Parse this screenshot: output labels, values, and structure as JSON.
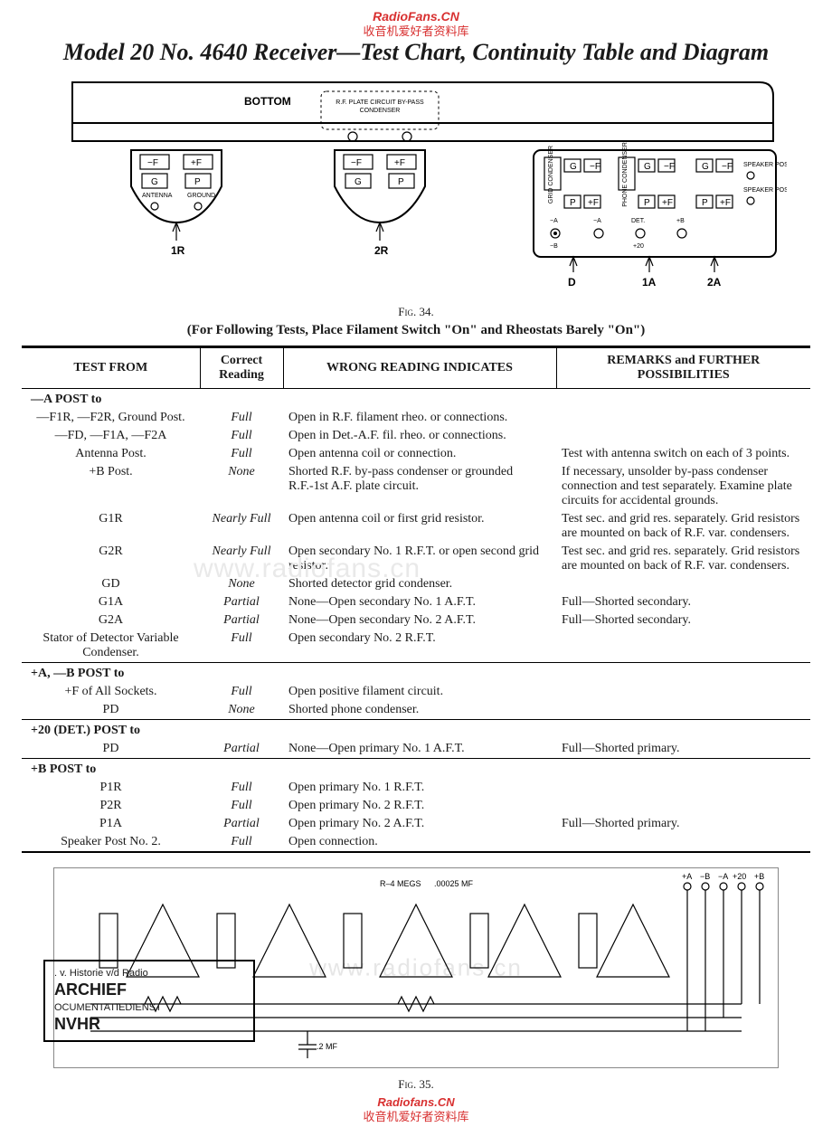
{
  "watermarks": {
    "top1": "RadioFans.CN",
    "top2": "收音机爱好者资料库",
    "center": "www.radiofans.cn",
    "bottom1": "Radiofans.CN",
    "bottom2": "收音机爱好者资料库"
  },
  "title": "Model 20 No. 4640 Receiver—Test Chart, Continuity Table and Diagram",
  "fig34": "Fig. 34.",
  "fig35": "Fig. 35.",
  "instruction": "(For Following Tests, Place Filament Switch \"On\" and Rheostats Barely \"On\")",
  "chassis": {
    "bottom_label": "BOTTOM",
    "bypass_label_l1": "R.F. PLATE CIRCUIT BY-PASS",
    "bypass_label_l2": "CONDENSER",
    "socket_labels": {
      "nF": "−F",
      "pF": "+F",
      "G": "G",
      "P": "P"
    },
    "posts": {
      "antenna": "ANTENNA",
      "ground": "GROUND"
    },
    "r1": "1R",
    "r2": "2R",
    "d": "D",
    "a1": "1A",
    "a2": "2A",
    "minusA": "−A",
    "minusB": "−B",
    "det": "DET.",
    "plus20": "+20",
    "plusB": "+B",
    "speaker1": "SPEAKER POST No. 1",
    "speaker2": "SPEAKER POST No. 2",
    "gridcond": "GRID CONDENSER",
    "phonecond": "PHONE CONDENSER"
  },
  "schematic": {
    "r_label": "R–4 MEGS",
    "c1_label": ".00025 MF",
    "c2_label": ".2 MF",
    "post_labels": [
      "+A",
      "−B",
      "−A",
      "+20",
      "+B"
    ]
  },
  "table": {
    "headers": [
      "TEST FROM",
      "Correct Reading",
      "WRONG READING INDICATES",
      "REMARKS and FURTHER POSSIBILITIES"
    ],
    "sections": [
      {
        "header": "—A POST to",
        "rows": [
          {
            "from": "—F1R, —F2R, Ground Post.",
            "reading": "Full",
            "wrong": "Open in R.F. filament rheo. or connections.",
            "remarks": ""
          },
          {
            "from": "—FD, —F1A, —F2A",
            "reading": "Full",
            "wrong": "Open in Det.-A.F. fil. rheo. or connections.",
            "remarks": ""
          },
          {
            "from": "Antenna Post.",
            "reading": "Full",
            "wrong": "Open antenna coil or connection.",
            "remarks": "Test with antenna switch on each of 3 points."
          },
          {
            "from": "+B Post.",
            "reading": "None",
            "wrong": "Shorted R.F. by-pass condenser or grounded R.F.-1st A.F. plate circuit.",
            "remarks": "If necessary, unsolder by-pass condenser connection and test separately. Examine plate circuits for accidental grounds."
          },
          {
            "from": "G1R",
            "reading": "Nearly Full",
            "wrong": "Open antenna coil or first grid resistor.",
            "remarks": "Test sec. and grid res. separately. Grid resistors are mounted on back of R.F. var. condensers."
          },
          {
            "from": "G2R",
            "reading": "Nearly Full",
            "wrong": "Open secondary No. 1 R.F.T. or open second grid resistor.",
            "remarks": "Test sec. and grid res. separately. Grid resistors are mounted on back of R.F. var. condensers."
          },
          {
            "from": "GD",
            "reading": "None",
            "wrong": "Shorted detector grid condenser.",
            "remarks": ""
          },
          {
            "from": "G1A",
            "reading": "Partial",
            "wrong": "None—Open secondary No. 1 A.F.T.",
            "remarks": "Full—Shorted secondary."
          },
          {
            "from": "G2A",
            "reading": "Partial",
            "wrong": "None—Open secondary No. 2 A.F.T.",
            "remarks": "Full—Shorted secondary."
          },
          {
            "from": "Stator of Detector Variable Condenser.",
            "reading": "Full",
            "wrong": "Open secondary No. 2 R.F.T.",
            "remarks": ""
          }
        ]
      },
      {
        "header": "+A, —B POST to",
        "rows": [
          {
            "from": "+F of All Sockets.",
            "reading": "Full",
            "wrong": "Open positive filament circuit.",
            "remarks": ""
          },
          {
            "from": "PD",
            "reading": "None",
            "wrong": "Shorted phone condenser.",
            "remarks": ""
          }
        ]
      },
      {
        "header": "+20 (DET.) POST to",
        "rows": [
          {
            "from": "PD",
            "reading": "Partial",
            "wrong": "None—Open primary No. 1 A.F.T.",
            "remarks": "Full—Shorted primary."
          }
        ]
      },
      {
        "header": "+B POST to",
        "rows": [
          {
            "from": "P1R",
            "reading": "Full",
            "wrong": "Open primary No. 1 R.F.T.",
            "remarks": ""
          },
          {
            "from": "P2R",
            "reading": "Full",
            "wrong": "Open primary No. 2 R.F.T.",
            "remarks": ""
          },
          {
            "from": "P1A",
            "reading": "Partial",
            "wrong": "Open primary No. 2 A.F.T.",
            "remarks": "Full—Shorted primary."
          },
          {
            "from": "Speaker Post No. 2.",
            "reading": "Full",
            "wrong": "Open connection.",
            "remarks": ""
          }
        ]
      }
    ]
  },
  "stamp": {
    "line1": ". v. Historie v/d Radio",
    "line2": "ARCHIEF",
    "line3": "OCUMENTATIEDIENST",
    "line4": "NVHR"
  }
}
